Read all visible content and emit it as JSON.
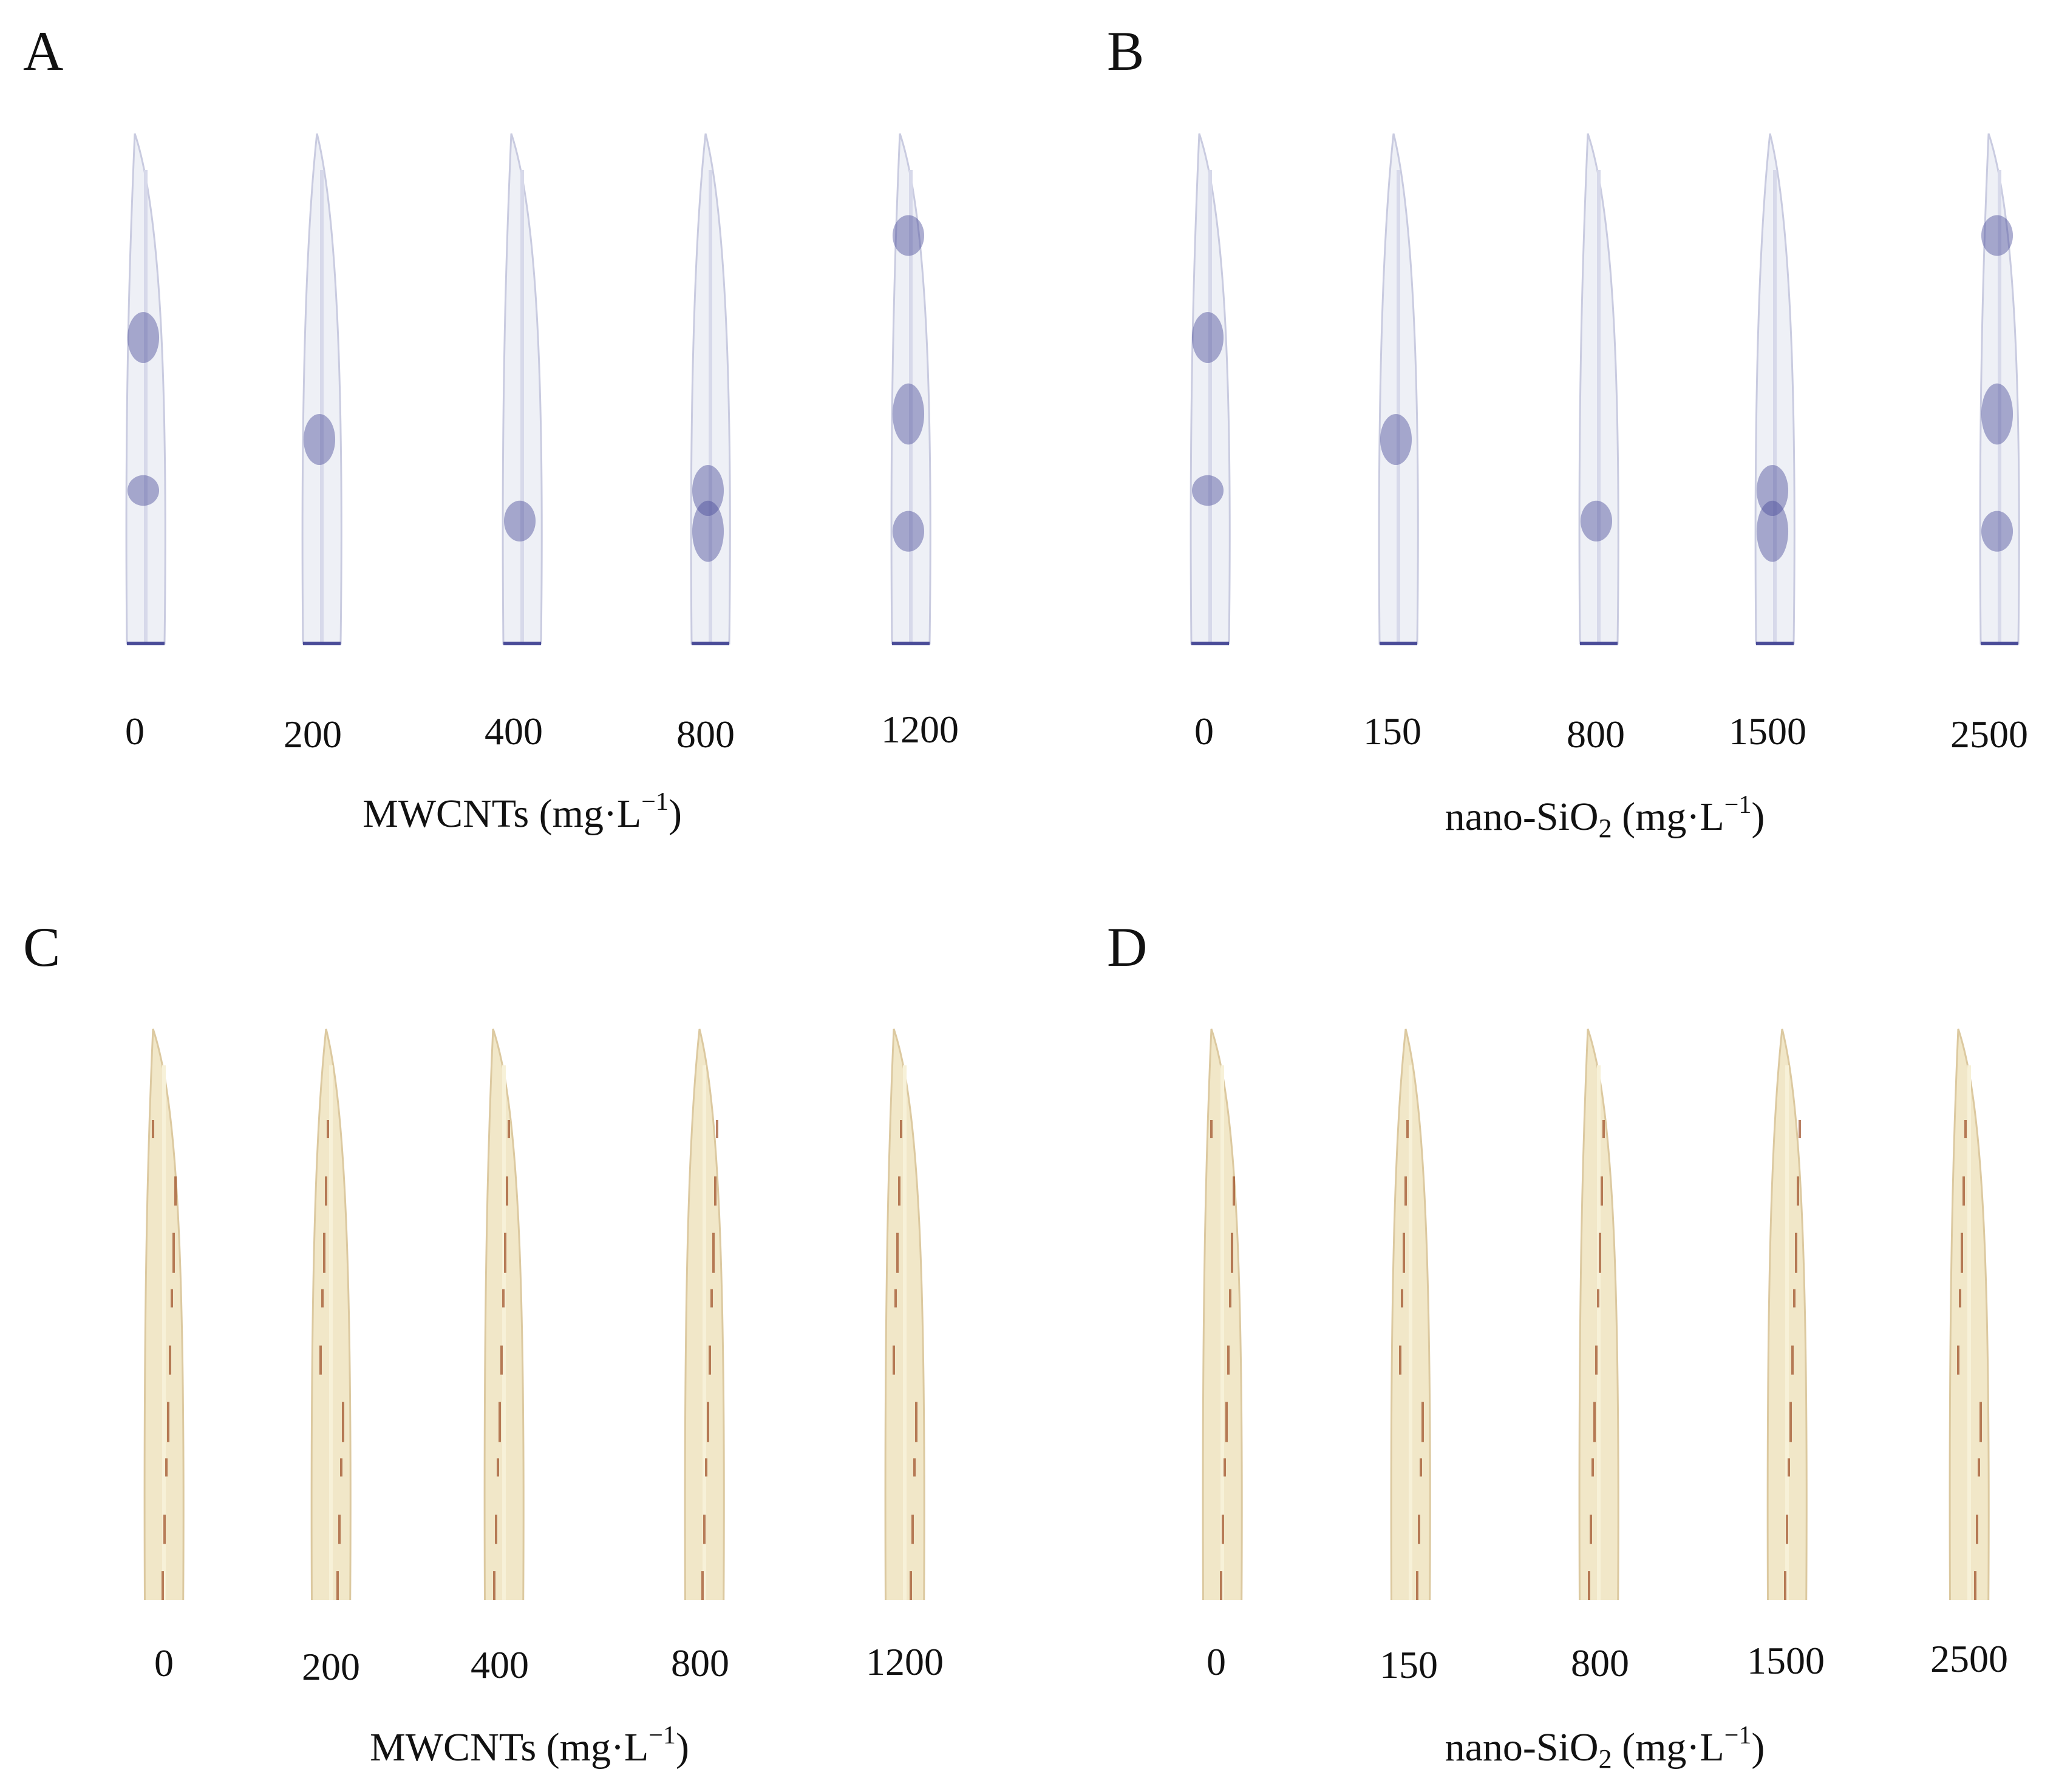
{
  "panels": [
    {
      "letter": "A",
      "stain": "blue",
      "ticks": [
        "0",
        "200",
        "400",
        "800",
        "1200"
      ],
      "label_main": "MWCNTs (mg·L",
      "label_sub": "",
      "label_tail": ")",
      "label_sup": "−1"
    },
    {
      "letter": "B",
      "stain": "blue",
      "ticks": [
        "0",
        "150",
        "800",
        "1500",
        "2500"
      ],
      "label_main": "nano-SiO",
      "label_sub": "2",
      "label_tail": " (mg·L",
      "label_sup": "−1",
      "label_end": ")"
    },
    {
      "letter": "C",
      "stain": "brown",
      "ticks": [
        "0",
        "200",
        "400",
        "800",
        "1200"
      ],
      "label_main": "MWCNTs (mg·L",
      "label_sub": "",
      "label_tail": ")",
      "label_sup": "−1"
    },
    {
      "letter": "D",
      "stain": "brown",
      "ticks": [
        "0",
        "150",
        "800",
        "1500",
        "2500"
      ],
      "label_main": "nano-SiO",
      "label_sub": "2",
      "label_tail": " (mg·L",
      "label_sup": "−1",
      "label_end": ")"
    }
  ],
  "colors": {
    "blue_leaf": "#eef0f6",
    "blue_stain": "#4a4c98",
    "brown_leaf": "#f1e7c8",
    "brown_stain": "#9b4a22",
    "background": "#ffffff"
  }
}
